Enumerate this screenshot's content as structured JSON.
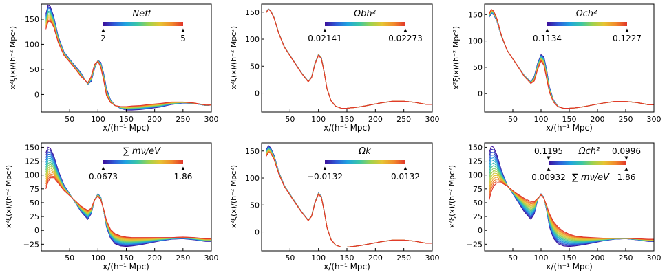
{
  "figure": {
    "xlabel": "x/(h⁻¹ Mpc)",
    "ylabel": "x²ξ(x)/(h⁻² Mpc²)",
    "colormap": [
      "#3b0f9a",
      "#2f5bd8",
      "#1fa3e0",
      "#3cc7a4",
      "#9fd24d",
      "#e6c533",
      "#f28a2c",
      "#e0342a"
    ]
  },
  "chart_data": [
    {
      "type": "line",
      "name": "neff",
      "colorbar": {
        "label": "Neff",
        "min_label": "2",
        "max_label": "5"
      },
      "xlim": [
        0,
        300
      ],
      "ylim": [
        -35,
        180
      ],
      "xticks": [
        "50",
        "100",
        "150",
        "200",
        "250",
        "300"
      ],
      "yticks": [
        "150",
        "100",
        "50",
        "0"
      ],
      "n_curves": 12,
      "series": [
        {
          "name": "Neff = 2",
          "x": [
            8,
            12,
            16,
            22,
            30,
            40,
            55,
            70,
            82,
            88,
            94,
            100,
            105,
            110,
            115,
            122,
            130,
            140,
            150,
            160,
            175,
            190,
            210,
            230,
            250,
            270,
            290,
            300
          ],
          "y": [
            160,
            178,
            175,
            155,
            115,
            85,
            63,
            43,
            20,
            26,
            52,
            68,
            64,
            42,
            12,
            -10,
            -22,
            -28,
            -31,
            -31,
            -30,
            -28,
            -25,
            -20,
            -17,
            -18,
            -22,
            -21
          ]
        },
        {
          "name": "Neff = 5",
          "x": [
            8,
            12,
            16,
            22,
            30,
            40,
            55,
            70,
            82,
            88,
            94,
            100,
            105,
            110,
            115,
            122,
            130,
            140,
            150,
            160,
            175,
            190,
            210,
            230,
            250,
            270,
            290,
            300
          ],
          "y": [
            130,
            145,
            146,
            134,
            103,
            78,
            58,
            36,
            23,
            36,
            60,
            66,
            54,
            28,
            -2,
            -16,
            -22,
            -24,
            -24,
            -23,
            -22,
            -20,
            -18,
            -15,
            -15,
            -17,
            -21,
            -21
          ]
        }
      ]
    },
    {
      "type": "line",
      "name": "omega_b",
      "colorbar": {
        "label": "Ωbh²",
        "min_label": "0.02141",
        "max_label": "0.02273"
      },
      "xlim": [
        0,
        300
      ],
      "ylim": [
        -35,
        165
      ],
      "xticks": [
        "50",
        "100",
        "150",
        "200",
        "250",
        "300"
      ],
      "yticks": [
        "150",
        "100",
        "50",
        "0"
      ],
      "n_curves": 12,
      "series": [
        {
          "name": "Ωbh² = 0.02141",
          "x": [
            8,
            12,
            16,
            22,
            30,
            40,
            55,
            70,
            82,
            88,
            94,
            100,
            105,
            110,
            115,
            122,
            130,
            140,
            150,
            160,
            175,
            190,
            210,
            230,
            250,
            270,
            290,
            300
          ],
          "y": [
            150,
            156,
            153,
            140,
            112,
            86,
            62,
            38,
            22,
            30,
            56,
            72,
            66,
            40,
            8,
            -14,
            -24,
            -28,
            -28,
            -27,
            -25,
            -22,
            -18,
            -15,
            -15,
            -17,
            -21,
            -21
          ]
        },
        {
          "name": "Ωbh² = 0.02273",
          "x": [
            8,
            12,
            16,
            22,
            30,
            40,
            55,
            70,
            82,
            88,
            94,
            100,
            105,
            110,
            115,
            122,
            130,
            140,
            150,
            160,
            175,
            190,
            210,
            230,
            250,
            270,
            290,
            300
          ],
          "y": [
            149,
            155,
            152,
            139,
            111,
            85,
            61,
            37,
            21,
            29,
            54,
            70,
            64,
            39,
            8,
            -14,
            -24,
            -28,
            -28,
            -27,
            -25,
            -22,
            -18,
            -15,
            -15,
            -17,
            -21,
            -21
          ]
        }
      ]
    },
    {
      "type": "line",
      "name": "omega_c",
      "colorbar": {
        "label": "Ωch²",
        "min_label": "0.1134",
        "max_label": "0.1227"
      },
      "xlim": [
        0,
        300
      ],
      "ylim": [
        -35,
        170
      ],
      "xticks": [
        "50",
        "100",
        "150",
        "200",
        "250",
        "300"
      ],
      "yticks": [
        "150",
        "100",
        "50",
        "0"
      ],
      "n_curves": 12,
      "series": [
        {
          "name": "Ωch² = 0.1134",
          "x": [
            8,
            12,
            16,
            22,
            30,
            40,
            55,
            70,
            82,
            88,
            94,
            100,
            105,
            110,
            115,
            122,
            130,
            140,
            150,
            160,
            175,
            190,
            210,
            230,
            250,
            270,
            290,
            300
          ],
          "y": [
            145,
            152,
            150,
            137,
            108,
            82,
            58,
            35,
            22,
            33,
            58,
            74,
            70,
            45,
            12,
            -12,
            -24,
            -28,
            -28,
            -27,
            -25,
            -22,
            -18,
            -15,
            -15,
            -17,
            -21,
            -21
          ]
        },
        {
          "name": "Ωch² = 0.1227",
          "x": [
            8,
            12,
            16,
            22,
            30,
            40,
            55,
            70,
            82,
            88,
            94,
            100,
            105,
            110,
            115,
            122,
            130,
            140,
            150,
            160,
            175,
            190,
            210,
            230,
            250,
            270,
            290,
            300
          ],
          "y": [
            152,
            160,
            157,
            142,
            110,
            82,
            58,
            33,
            19,
            24,
            46,
            62,
            54,
            28,
            2,
            -16,
            -25,
            -28,
            -28,
            -27,
            -25,
            -22,
            -18,
            -15,
            -15,
            -17,
            -21,
            -21
          ]
        }
      ]
    },
    {
      "type": "line",
      "name": "mnu",
      "colorbar": {
        "label": "∑ mν/eV",
        "min_label": "0.0673",
        "max_label": "1.86"
      },
      "xlim": [
        0,
        300
      ],
      "ylim": [
        -37,
        158
      ],
      "xticks": [
        "50",
        "100",
        "150",
        "200",
        "250",
        "300"
      ],
      "yticks": [
        "150",
        "125",
        "100",
        "75",
        "50",
        "25",
        "0",
        "−25"
      ],
      "n_curves": 16,
      "series": [
        {
          "name": "∑mν = 0.0673",
          "x": [
            8,
            12,
            16,
            22,
            30,
            40,
            55,
            70,
            82,
            88,
            94,
            100,
            105,
            110,
            115,
            122,
            130,
            140,
            150,
            160,
            175,
            190,
            210,
            230,
            250,
            270,
            290,
            300
          ],
          "y": [
            140,
            150,
            148,
            135,
            108,
            82,
            58,
            34,
            20,
            30,
            55,
            66,
            60,
            36,
            6,
            -14,
            -24,
            -28,
            -29,
            -28,
            -26,
            -23,
            -19,
            -16,
            -15,
            -17,
            -20,
            -20
          ]
        },
        {
          "name": "∑mν = 1.86",
          "x": [
            8,
            12,
            16,
            22,
            30,
            40,
            55,
            70,
            82,
            88,
            94,
            100,
            105,
            110,
            115,
            122,
            130,
            140,
            150,
            160,
            175,
            190,
            210,
            230,
            250,
            270,
            290,
            300
          ],
          "y": [
            75,
            88,
            95,
            95,
            85,
            72,
            58,
            44,
            36,
            40,
            55,
            62,
            55,
            38,
            18,
            2,
            -6,
            -10,
            -12,
            -13,
            -13,
            -13,
            -13,
            -13,
            -12,
            -13,
            -15,
            -15
          ]
        }
      ]
    },
    {
      "type": "line",
      "name": "omega_k",
      "colorbar": {
        "label": "Ωk",
        "min_label": "−0.0132",
        "max_label": "0.0132"
      },
      "xlim": [
        0,
        300
      ],
      "ylim": [
        -35,
        165
      ],
      "xticks": [
        "50",
        "100",
        "150",
        "200",
        "250",
        "300"
      ],
      "yticks": [
        "150",
        "100",
        "50",
        "0"
      ],
      "n_curves": 12,
      "series": [
        {
          "name": "Ωk = −0.0132",
          "x": [
            8,
            12,
            16,
            22,
            30,
            40,
            55,
            70,
            82,
            88,
            94,
            100,
            105,
            110,
            115,
            122,
            130,
            140,
            150,
            160,
            175,
            190,
            210,
            230,
            250,
            270,
            290,
            300
          ],
          "y": [
            152,
            160,
            156,
            142,
            112,
            86,
            62,
            38,
            22,
            30,
            56,
            72,
            66,
            40,
            8,
            -14,
            -24,
            -28,
            -28,
            -27,
            -25,
            -22,
            -18,
            -15,
            -15,
            -17,
            -21,
            -21
          ]
        },
        {
          "name": "Ωk = 0.0132",
          "x": [
            8,
            12,
            16,
            22,
            30,
            40,
            55,
            70,
            82,
            88,
            94,
            100,
            105,
            110,
            115,
            122,
            130,
            140,
            150,
            160,
            175,
            190,
            210,
            230,
            250,
            270,
            290,
            300
          ],
          "y": [
            140,
            147,
            146,
            134,
            108,
            84,
            60,
            37,
            21,
            29,
            54,
            70,
            64,
            39,
            8,
            -14,
            -24,
            -28,
            -28,
            -27,
            -25,
            -22,
            -18,
            -15,
            -15,
            -17,
            -21,
            -21
          ]
        }
      ]
    },
    {
      "type": "line",
      "name": "degeneracy",
      "colorbar": {
        "label": "Ωch²",
        "label2": "∑ mν/eV",
        "top_min_label": "0.1195",
        "top_max_label": "0.0996",
        "min_label": "0.00932",
        "max_label": "1.86"
      },
      "xlim": [
        0,
        300
      ],
      "ylim": [
        -37,
        158
      ],
      "xticks": [
        "50",
        "100",
        "150",
        "200",
        "250",
        "300"
      ],
      "yticks": [
        "150",
        "125",
        "100",
        "75",
        "50",
        "25",
        "0",
        "−25"
      ],
      "n_curves": 16,
      "series": [
        {
          "name": "∑mν = 0.00932, Ωch² = 0.1195",
          "x": [
            8,
            12,
            16,
            22,
            30,
            40,
            55,
            70,
            82,
            88,
            94,
            100,
            105,
            110,
            115,
            122,
            130,
            140,
            150,
            160,
            175,
            190,
            210,
            230,
            250,
            270,
            290,
            300
          ],
          "y": [
            140,
            152,
            150,
            136,
            108,
            82,
            58,
            34,
            20,
            30,
            55,
            66,
            60,
            36,
            6,
            -14,
            -24,
            -28,
            -29,
            -28,
            -26,
            -23,
            -19,
            -16,
            -15,
            -17,
            -20,
            -20
          ]
        },
        {
          "name": "∑mν = 1.86, Ωch² = 0.0996",
          "x": [
            8,
            12,
            16,
            22,
            30,
            40,
            55,
            70,
            82,
            88,
            94,
            100,
            105,
            110,
            115,
            122,
            130,
            140,
            150,
            160,
            175,
            190,
            210,
            230,
            250,
            270,
            290,
            300
          ],
          "y": [
            55,
            70,
            80,
            86,
            86,
            80,
            68,
            58,
            52,
            52,
            58,
            64,
            58,
            45,
            30,
            16,
            6,
            -2,
            -7,
            -10,
            -12,
            -13,
            -14,
            -14,
            -14,
            -15,
            -16,
            -16
          ]
        }
      ]
    }
  ]
}
